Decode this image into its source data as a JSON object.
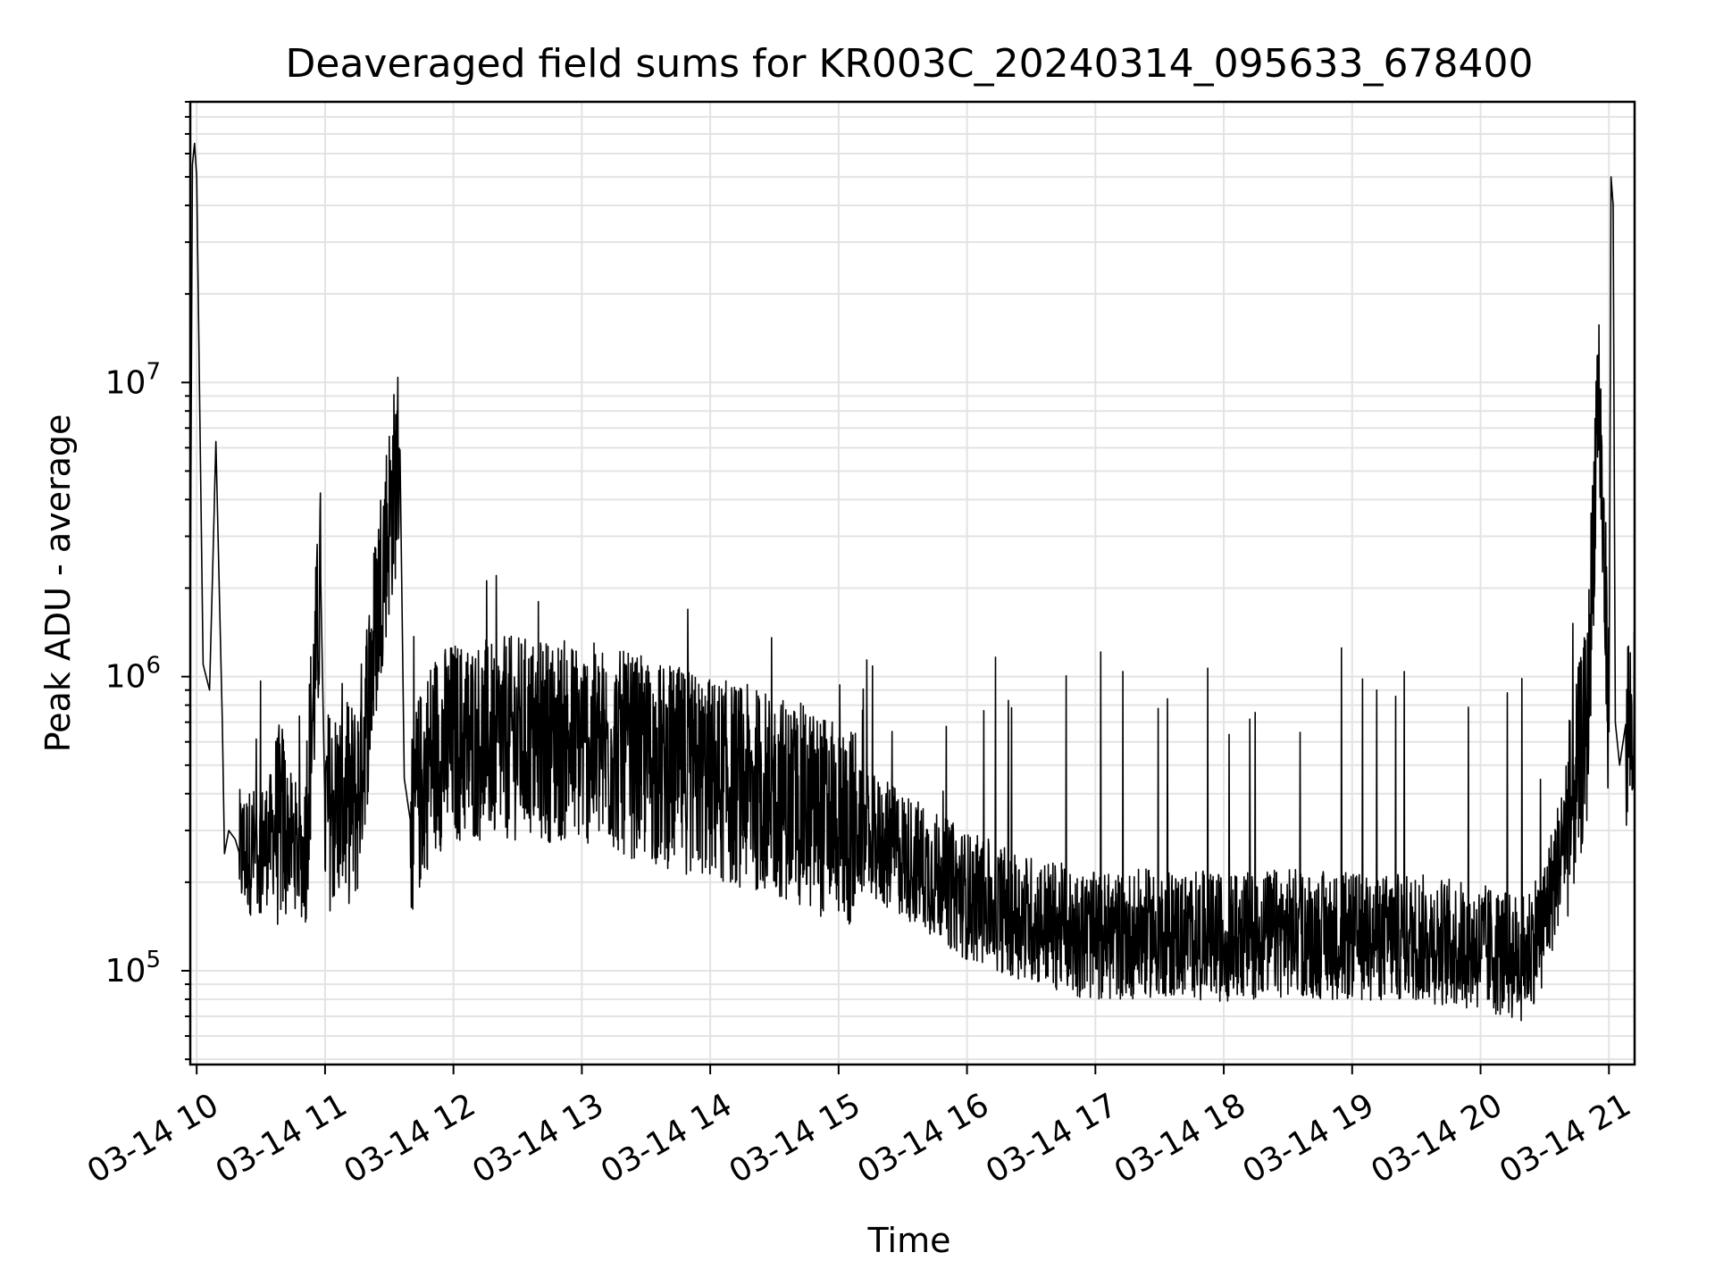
{
  "chart_data": {
    "type": "line",
    "title": "Deaveraged field sums for KR003C_20240314_095633_678400",
    "xlabel": "Time",
    "ylabel": "Peak ADU - average",
    "yscale": "log",
    "ylim": [
      48000,
      90000000
    ],
    "xlim": [
      "2024-03-14 09:57",
      "2024-03-14 21:12"
    ],
    "x_ticks": [
      "03-14 10",
      "03-14 11",
      "03-14 12",
      "03-14 13",
      "03-14 14",
      "03-14 15",
      "03-14 16",
      "03-14 17",
      "03-14 18",
      "03-14 19",
      "03-14 20",
      "03-14 21"
    ],
    "y_ticks": [
      {
        "value": 100000,
        "base": "10",
        "exp": "5"
      },
      {
        "value": 1000000,
        "base": "10",
        "exp": "6"
      },
      {
        "value": 10000000,
        "base": "10",
        "exp": "7"
      }
    ],
    "grid": true,
    "line_color": "#000000",
    "series": [
      {
        "x": [
          "2024-03-14 09:57",
          "2024-03-14 09:58",
          "2024-03-14 09:59",
          "2024-03-14 10:00",
          "2024-03-14 10:03",
          "2024-03-14 10:06",
          "2024-03-14 10:09",
          "2024-03-14 10:12",
          "2024-03-14 10:13",
          "2024-03-14 10:15",
          "2024-03-14 10:18",
          "2024-03-14 10:20",
          "2024-03-14 10:30",
          "2024-03-14 10:40",
          "2024-03-14 10:50",
          "2024-03-14 10:58",
          "2024-03-14 11:00",
          "2024-03-14 11:15",
          "2024-03-14 11:27",
          "2024-03-14 11:35",
          "2024-03-14 11:37",
          "2024-03-14 11:40",
          "2024-03-14 11:50",
          "2024-03-14 12:00",
          "2024-03-14 12:30",
          "2024-03-14 13:00",
          "2024-03-14 13:30",
          "2024-03-14 14:00",
          "2024-03-14 14:30",
          "2024-03-14 15:00",
          "2024-03-14 15:30",
          "2024-03-14 16:00",
          "2024-03-14 16:30",
          "2024-03-14 17:00",
          "2024-03-14 17:30",
          "2024-03-14 18:00",
          "2024-03-14 18:30",
          "2024-03-14 19:00",
          "2024-03-14 19:30",
          "2024-03-14 20:00",
          "2024-03-14 20:20",
          "2024-03-14 20:30",
          "2024-03-14 20:40",
          "2024-03-14 20:50",
          "2024-03-14 20:55",
          "2024-03-14 21:00",
          "2024-03-14 21:01",
          "2024-03-14 21:02",
          "2024-03-14 21:03",
          "2024-03-14 21:05",
          "2024-03-14 21:08",
          "2024-03-14 21:12"
        ],
        "y": [
          1700000,
          55000000,
          65000000,
          50000000,
          1100000,
          900000,
          6300000,
          700000,
          250000,
          300000,
          280000,
          250000,
          260000,
          320000,
          240000,
          2100000,
          350000,
          380000,
          2500000,
          5900000,
          450000,
          320000,
          550000,
          600000,
          620000,
          600000,
          520000,
          450000,
          400000,
          320000,
          250000,
          180000,
          150000,
          130000,
          135000,
          130000,
          135000,
          130000,
          130000,
          120000,
          110000,
          150000,
          300000,
          700000,
          11000000,
          650000,
          50000000,
          40000000,
          700000,
          500000,
          700000,
          650000
        ]
      }
    ]
  }
}
